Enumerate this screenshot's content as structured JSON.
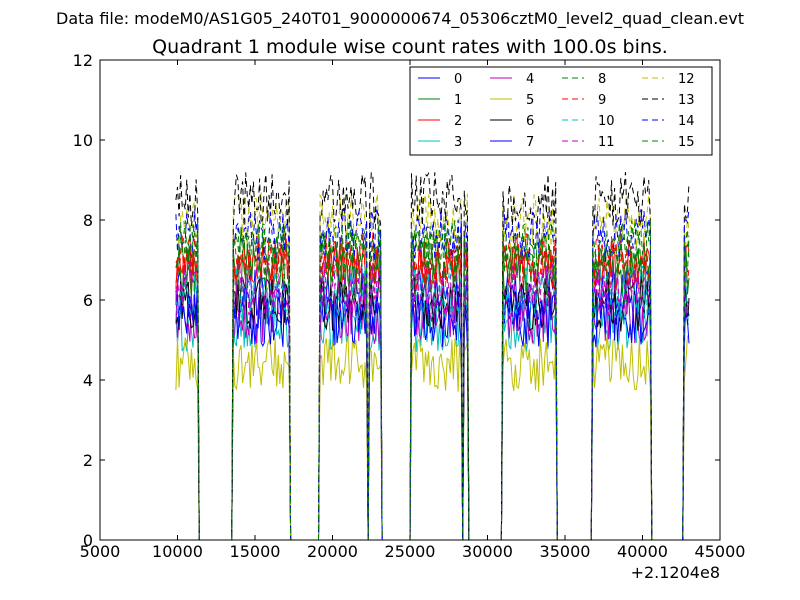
{
  "header": {
    "datafile": "Data file: modeM0/AS1G05_240T01_9000000674_05306cztM0_level2_quad_clean.evt"
  },
  "colors": {
    "blue": "#0000ff",
    "green": "#008000",
    "red": "#ff0000",
    "cyan": "#00bfbf",
    "magenta": "#bf00bf",
    "olive": "#bfbf00",
    "black": "#000000"
  },
  "chart_data": {
    "type": "line",
    "title": "Quadrant 1 module wise count rates with 100.0s bins.",
    "xlabel": "",
    "ylabel": "",
    "x_offset_label": "+2.1204e8",
    "xlim": [
      5000,
      45000
    ],
    "ylim": [
      0,
      12
    ],
    "x_ticks": [
      5000,
      10000,
      15000,
      20000,
      25000,
      30000,
      35000,
      40000,
      45000
    ],
    "y_ticks": [
      0,
      2,
      4,
      6,
      8,
      10,
      12
    ],
    "x_tick_labels": [
      "5000",
      "10000",
      "15000",
      "20000",
      "25000",
      "30000",
      "35000",
      "40000",
      "45000"
    ],
    "y_tick_labels": [
      "0",
      "2",
      "4",
      "6",
      "8",
      "10",
      "12"
    ],
    "legend_position": "top-right",
    "active_intervals": [
      [
        9900,
        11300
      ],
      [
        13600,
        17200
      ],
      [
        19200,
        22200
      ],
      [
        22400,
        23100
      ],
      [
        25100,
        28300
      ],
      [
        28500,
        28700
      ],
      [
        31000,
        34400
      ],
      [
        36800,
        40500
      ],
      [
        42700,
        43000
      ]
    ],
    "series": [
      {
        "name": "0",
        "color": "blue",
        "style": "solid",
        "level": 6.1
      },
      {
        "name": "1",
        "color": "green",
        "style": "solid",
        "level": 6.7
      },
      {
        "name": "2",
        "color": "red",
        "style": "solid",
        "level": 6.9
      },
      {
        "name": "3",
        "color": "cyan",
        "style": "solid",
        "level": 5.4
      },
      {
        "name": "4",
        "color": "magenta",
        "style": "solid",
        "level": 5.6
      },
      {
        "name": "5",
        "color": "olive",
        "style": "solid",
        "level": 4.4
      },
      {
        "name": "6",
        "color": "black",
        "style": "solid",
        "level": 5.9
      },
      {
        "name": "7",
        "color": "blue",
        "style": "solid",
        "level": 5.5
      },
      {
        "name": "8",
        "color": "green",
        "style": "dashed",
        "level": 7.1
      },
      {
        "name": "9",
        "color": "red",
        "style": "dashed",
        "level": 7.0
      },
      {
        "name": "10",
        "color": "cyan",
        "style": "dashed",
        "level": 6.2
      },
      {
        "name": "11",
        "color": "magenta",
        "style": "dashed",
        "level": 6.3
      },
      {
        "name": "12",
        "color": "olive",
        "style": "dashed",
        "level": 8.0
      },
      {
        "name": "13",
        "color": "black",
        "style": "dashed",
        "level": 8.5
      },
      {
        "name": "14",
        "color": "blue",
        "style": "dashed",
        "level": 7.6
      },
      {
        "name": "15",
        "color": "green",
        "style": "dashed",
        "level": 7.3
      }
    ]
  }
}
